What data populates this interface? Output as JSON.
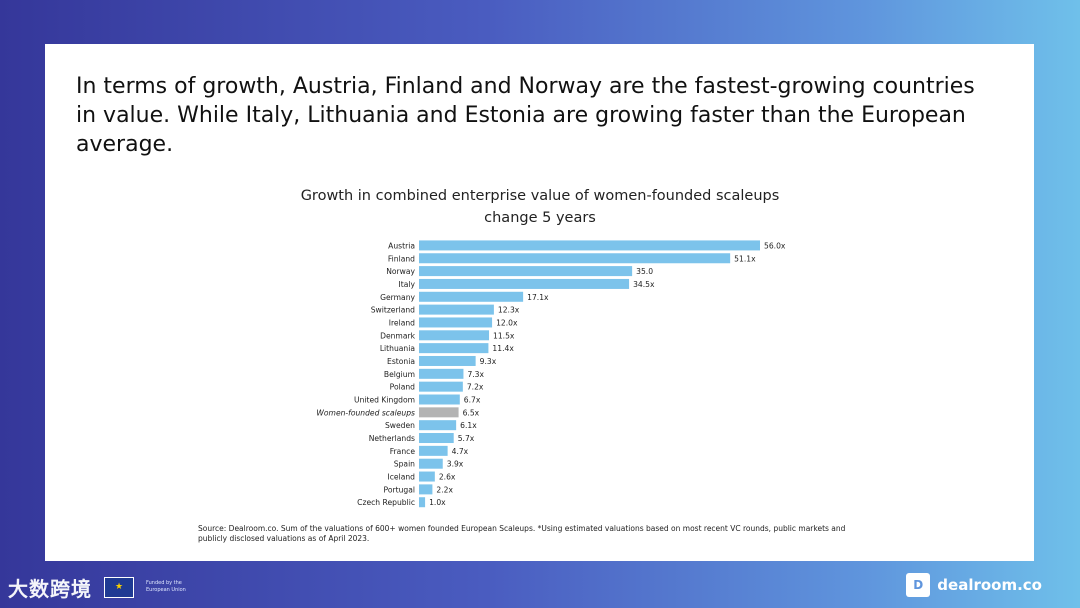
{
  "headline": "In terms of growth, Austria, Finland and Norway are the fastest-growing countries in value. While Italy, Lithuania and Estonia are growing faster than the European average.",
  "chart_data": {
    "type": "bar",
    "orientation": "horizontal",
    "title": "Growth in combined enterprise value of women-founded scaleups",
    "subtitle": "change 5 years",
    "xlim": [
      0,
      56
    ],
    "grid": false,
    "colors": {
      "bar": "#7cc3eb",
      "highlight": "#b3b3b3"
    },
    "highlight_category": "Women-founded scaleups",
    "categories": [
      "Austria",
      "Finland",
      "Norway",
      "Italy",
      "Germany",
      "Switzerland",
      "Ireland",
      "Denmark",
      "Lithuania",
      "Estonia",
      "Belgium",
      "Poland",
      "United Kingdom",
      "Women-founded scaleups",
      "Sweden",
      "Netherlands",
      "France",
      "Spain",
      "Iceland",
      "Portugal",
      "Czech Republic"
    ],
    "values": [
      56.0,
      51.1,
      35.0,
      34.5,
      17.1,
      12.3,
      12.0,
      11.5,
      11.4,
      9.3,
      7.3,
      7.2,
      6.7,
      6.5,
      6.1,
      5.7,
      4.7,
      3.9,
      2.6,
      2.2,
      1.0
    ],
    "labels": [
      "56.0x",
      "51.1x",
      "35.0",
      "34.5x",
      "17.1x",
      "12.3x",
      "12.0x",
      "11.5x",
      "11.4x",
      "9.3x",
      "7.3x",
      "7.2x",
      "6.7x",
      "6.5x",
      "6.1x",
      "5.7x",
      "4.7x",
      "3.9x",
      "2.6x",
      "2.2x",
      "1.0x"
    ]
  },
  "source": "Source: Dealroom.co. Sum of the valuations of 600+ women founded European Scaleups. *Using estimated valuations based on most recent VC rounds, public markets and publicly disclosed valuations as of April 2023.",
  "footer": {
    "brand": "大数跨境",
    "eu_text": "Funded by the European Union",
    "eu_icon": "eu-flag-icon",
    "logo_icon": "dealroom-logo-icon",
    "logo_mark": "D",
    "logo_text": "dealroom.co"
  }
}
